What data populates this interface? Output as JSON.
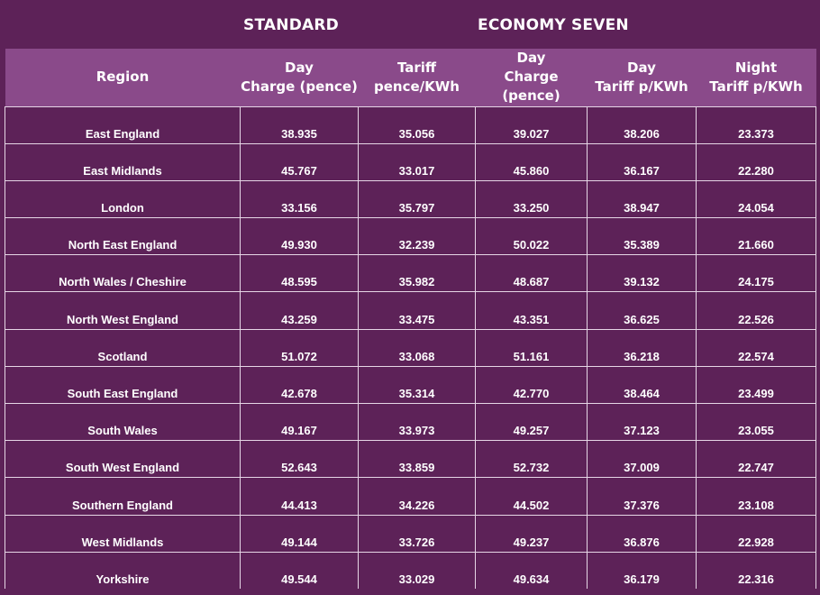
{
  "groups": {
    "standard": "STANDARD",
    "economy": "ECONOMY SEVEN"
  },
  "header": {
    "region": "Region",
    "std_day_charge": [
      "Day",
      "Charge (pence)"
    ],
    "std_tariff": [
      "Tariff",
      "pence/KWh"
    ],
    "e7_day_charge": [
      "Day",
      "Charge (pence)"
    ],
    "e7_day_tariff": [
      "Day",
      "Tariff p/KWh"
    ],
    "e7_night_tariff": [
      "Night",
      "Tariff p/KWh"
    ]
  },
  "rows": [
    [
      "East England",
      "38.935",
      "35.056",
      "39.027",
      "38.206",
      "23.373"
    ],
    [
      "East Midlands",
      "45.767",
      "33.017",
      "45.860",
      "36.167",
      "22.280"
    ],
    [
      "London",
      "33.156",
      "35.797",
      "33.250",
      "38.947",
      "24.054"
    ],
    [
      "North East England",
      "49.930",
      "32.239",
      "50.022",
      "35.389",
      "21.660"
    ],
    [
      "North Wales / Cheshire",
      "48.595",
      "35.982",
      "48.687",
      "39.132",
      "24.175"
    ],
    [
      "North West England",
      "43.259",
      "33.475",
      "43.351",
      "36.625",
      "22.526"
    ],
    [
      "Scotland",
      "51.072",
      "33.068",
      "51.161",
      "36.218",
      "22.574"
    ],
    [
      "South East England",
      "42.678",
      "35.314",
      "42.770",
      "38.464",
      "23.499"
    ],
    [
      "South Wales",
      "49.167",
      "33.973",
      "49.257",
      "37.123",
      "23.055"
    ],
    [
      "South West England",
      "52.643",
      "33.859",
      "52.732",
      "37.009",
      "22.747"
    ],
    [
      "Southern England",
      "44.413",
      "34.226",
      "44.502",
      "37.376",
      "23.108"
    ],
    [
      "West Midlands",
      "49.144",
      "33.726",
      "49.237",
      "36.876",
      "22.928"
    ],
    [
      "Yorkshire",
      "49.544",
      "33.029",
      "49.634",
      "36.179",
      "22.316"
    ]
  ],
  "colors": {
    "background": "#5d2258",
    "header_band": "#8a4a8a",
    "grid_lines": "#e6d6e6",
    "text": "#ffffff"
  }
}
